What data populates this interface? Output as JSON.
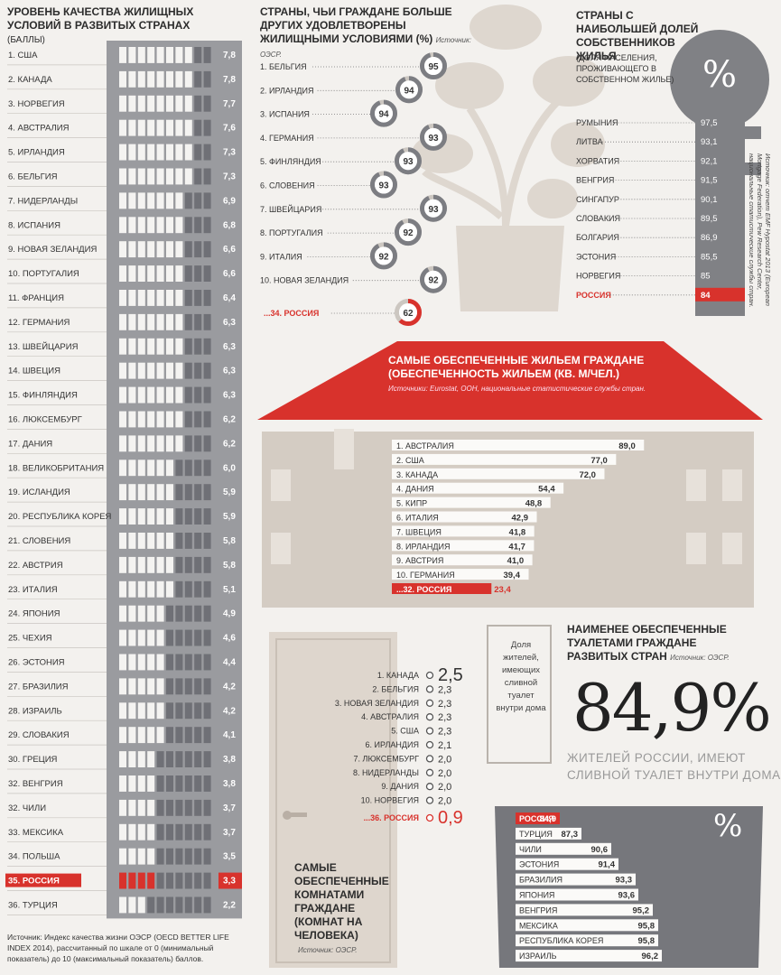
{
  "colors": {
    "red": "#d8322c",
    "grey_dark": "#6f7076",
    "grey_mid": "#9a9b9f",
    "beige": "#ddd5cd",
    "beige_light": "#ebe5de",
    "text": "#2a2a2a"
  },
  "chart_data": [
    {
      "id": "quality",
      "type": "bar",
      "title": "УРОВЕНЬ КАЧЕСТВА ЖИЛИЩНЫХ УСЛОВИЙ В РАЗВИТЫХ СТРАНАХ",
      "unit": "(БАЛЛЫ)",
      "xlim": [
        0,
        10
      ],
      "categories": [
        "1. США",
        "2. КАНАДА",
        "3. НОРВЕГИЯ",
        "4. АВСТРАЛИЯ",
        "5. ИРЛАНДИЯ",
        "6. БЕЛЬГИЯ",
        "7. НИДЕРЛАНДЫ",
        "8. ИСПАНИЯ",
        "9. НОВАЯ ЗЕЛАНДИЯ",
        "10. ПОРТУГАЛИЯ",
        "11. ФРАНЦИЯ",
        "12. ГЕРМАНИЯ",
        "13. ШВЕЙЦАРИЯ",
        "14. ШВЕЦИЯ",
        "15. ФИНЛЯНДИЯ",
        "16. ЛЮКСЕМБУРГ",
        "17. ДАНИЯ",
        "18. ВЕЛИКОБРИТАНИЯ",
        "19. ИСЛАНДИЯ",
        "20. РЕСПУБЛИКА КОРЕЯ",
        "21. СЛОВЕНИЯ",
        "22. АВСТРИЯ",
        "23. ИТАЛИЯ",
        "24. ЯПОНИЯ",
        "25. ЧЕХИЯ",
        "26. ЭСТОНИЯ",
        "27. БРАЗИЛИЯ",
        "28. ИЗРАИЛЬ",
        "29. СЛОВАКИЯ",
        "30. ГРЕЦИЯ",
        "32. ВЕНГРИЯ",
        "32. ЧИЛИ",
        "33. МЕКСИКА",
        "34. ПОЛЬША",
        "35. РОССИЯ",
        "36. ТУРЦИЯ"
      ],
      "values": [
        7.8,
        7.8,
        7.7,
        7.6,
        7.3,
        7.3,
        6.9,
        6.8,
        6.6,
        6.6,
        6.4,
        6.3,
        6.3,
        6.3,
        6.3,
        6.2,
        6.2,
        6.0,
        5.9,
        5.9,
        5.8,
        5.8,
        5.1,
        4.9,
        4.6,
        4.4,
        4.2,
        4.2,
        4.1,
        3.8,
        3.8,
        3.7,
        3.7,
        3.5,
        3.3,
        2.2
      ],
      "value_labels": [
        "7,8",
        "7,8",
        "7,7",
        "7,6",
        "7,3",
        "7,3",
        "6,9",
        "6,8",
        "6,6",
        "6,6",
        "6,4",
        "6,3",
        "6,3",
        "6,3",
        "6,3",
        "6,2",
        "6,2",
        "6,0",
        "5,9",
        "5,9",
        "5,8",
        "5,8",
        "5,1",
        "4,9",
        "4,6",
        "4,4",
        "4,2",
        "4,2",
        "4,1",
        "3,8",
        "3,8",
        "3,7",
        "3,7",
        "3,5",
        "3,3",
        "2,2"
      ],
      "highlight": "35. РОССИЯ",
      "footnote": "Источник: Индекс качества жизни ОЭСР (OECD BETTER LIFE INDEX 2014), рассчитанный по шкале от 0 (минимальный показатель) до 10 (максимальный показатель) баллов."
    },
    {
      "id": "satisfied",
      "type": "pie",
      "title": "СТРАНЫ, ЧЬИ ГРАЖДАНЕ БОЛЬШЕ ДРУГИХ УДОВЛЕТВОРЕНЫ ЖИЛИЩНЫМИ УСЛОВИЯМИ (%)",
      "source": "Источник: ОЭСР.",
      "categories": [
        "1. БЕЛЬГИЯ",
        "2. ИРЛАНДИЯ",
        "3. ИСПАНИЯ",
        "4. ГЕРМАНИЯ",
        "5. ФИНЛЯНДИЯ",
        "6. СЛОВЕНИЯ",
        "7. ШВЕЙЦАРИЯ",
        "8. ПОРТУГАЛИЯ",
        "9. ИТАЛИЯ",
        "10. НОВАЯ ЗЕЛАНДИЯ",
        "...34. РОССИЯ"
      ],
      "values": [
        95,
        94,
        94,
        93,
        93,
        93,
        93,
        92,
        92,
        92,
        62
      ]
    },
    {
      "id": "owners",
      "type": "bar",
      "title": "СТРАНЫ С НАИБОЛЬШЕЙ ДОЛЕЙ СОБСТВЕННИКОВ ЖИЛЬЯ",
      "subtitle": "(ДОЛЯ НАСЕЛЕНИЯ, ПРОЖИВАЮЩЕГО В СОБСТВЕННОМ ЖИЛЬЕ)",
      "icon_label": "%",
      "categories": [
        "РУМЫНИЯ",
        "ЛИТВА",
        "ХОРВАТИЯ",
        "ВЕНГРИЯ",
        "СИНГАПУР",
        "СЛОВАКИЯ",
        "БОЛГАРИЯ",
        "ЭСТОНИЯ",
        "НОРВЕГИЯ",
        "РОССИЯ"
      ],
      "values": [
        97.5,
        93.1,
        92.1,
        91.5,
        90.1,
        89.5,
        86.9,
        85.5,
        85,
        84
      ],
      "value_labels": [
        "97,5",
        "93,1",
        "92,1",
        "91,5",
        "90,1",
        "89,5",
        "86,9",
        "85,5",
        "85",
        "84"
      ],
      "source": "Источник: отчет EMF Hypostat 2013 (European Mortgage Federation), Pew Research Center, национальные статистические службы стран."
    },
    {
      "id": "space",
      "type": "bar",
      "title": "САМЫЕ ОБЕСПЕЧЕННЫЕ ЖИЛЬЕМ ГРАЖДАНЕ",
      "subtitle": "(ОБЕСПЕЧЕННОСТЬ ЖИЛЬЕМ (КВ. М/ЧЕЛ.)",
      "source": "Источники: Eurostat, ООН, национальные статистические службы стран.",
      "xlim": [
        0,
        100
      ],
      "categories": [
        "1. АВСТРАЛИЯ",
        "2. США",
        "3. КАНАДА",
        "4. ДАНИЯ",
        "5. КИПР",
        "6. ИТАЛИЯ",
        "7. ШВЕЦИЯ",
        "8. ИРЛАНДИЯ",
        "9. АВСТРИЯ",
        "10. ГЕРМАНИЯ",
        "...32. РОССИЯ"
      ],
      "values": [
        89.0,
        77.0,
        72.0,
        54.4,
        48.8,
        42.9,
        41.8,
        41.7,
        41.0,
        39.4,
        23.4
      ],
      "value_labels": [
        "89,0",
        "77,0",
        "72,0",
        "54,4",
        "48,8",
        "42,9",
        "41,8",
        "41,7",
        "41,0",
        "39,4",
        "23,4"
      ]
    },
    {
      "id": "rooms",
      "type": "scatter",
      "title": "САМЫЕ ОБЕСПЕЧЕННЫЕ КОМНАТАМИ ГРАЖДАНЕ (КОМНАТ НА ЧЕЛОВЕКА)",
      "source": "Источник: ОЭСР.",
      "categories": [
        "1. КАНАДА",
        "2. БЕЛЬГИЯ",
        "3. НОВАЯ ЗЕЛАНДИЯ",
        "4. АВСТРАЛИЯ",
        "5. США",
        "6. ИРЛАНДИЯ",
        "7. ЛЮКСЕМБУРГ",
        "8. НИДЕРЛАНДЫ",
        "9. ДАНИЯ",
        "10. НОРВЕГИЯ",
        "...36. РОССИЯ"
      ],
      "values": [
        2.5,
        2.3,
        2.3,
        2.3,
        2.3,
        2.1,
        2.0,
        2.0,
        2.0,
        2.0,
        0.9
      ],
      "value_labels": [
        "2,5",
        "2,3",
        "2,3",
        "2,3",
        "2,3",
        "2,1",
        "2,0",
        "2,0",
        "2,0",
        "2,0",
        "0,9"
      ]
    },
    {
      "id": "toilets",
      "type": "bar",
      "title": "НАИМЕНЕЕ ОБЕСПЕЧЕННЫЕ ТУАЛЕТАМИ ГРАЖДАНЕ РАЗВИТЫХ СТРАН",
      "source": "Источник: ОЭСР.",
      "xlim": [
        80,
        100
      ],
      "categories": [
        "РОССИЯ",
        "ТУРЦИЯ",
        "ЧИЛИ",
        "ЭСТОНИЯ",
        "БРАЗИЛИЯ",
        "ЯПОНИЯ",
        "ВЕНГРИЯ",
        "МЕКСИКА",
        "РЕСПУБЛИКА КОРЕЯ",
        "ИЗРАИЛЬ"
      ],
      "values": [
        84.9,
        87.3,
        90.6,
        91.4,
        93.3,
        93.6,
        95.2,
        95.8,
        95.8,
        96.2
      ],
      "value_labels": [
        "84,9",
        "87,3",
        "90,6",
        "91,4",
        "93,3",
        "93,6",
        "95,2",
        "95,8",
        "95,8",
        "96,2"
      ]
    }
  ],
  "toilet_callout": {
    "caption": "Доля жителей, имеющих сливной туалет внутри дома",
    "big": "84,9%",
    "line1": "ЖИТЕЛЕЙ РОССИИ, ИМЕЮТ",
    "line2": "СЛИВНОЙ ТУАЛЕТ ВНУТРИ ДОМА",
    "icon_label": "%"
  }
}
